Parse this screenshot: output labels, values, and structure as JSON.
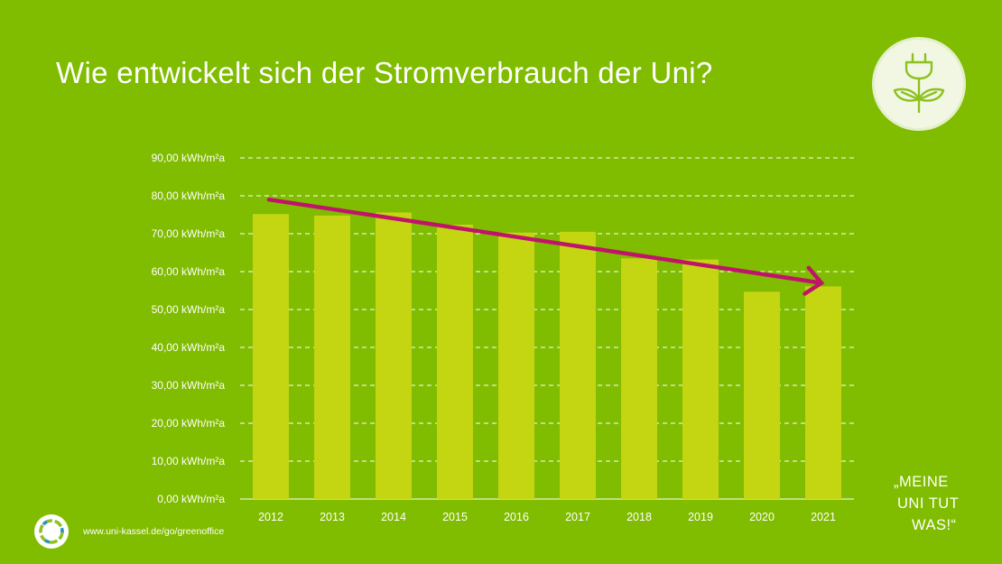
{
  "title": "Wie entwickelt sich der Stromverbrauch der Uni?",
  "colors": {
    "background": "#80bc00",
    "bar": "#c4d512",
    "trend_arrow": "#c0146a",
    "grid": "#ffffff"
  },
  "badge": {
    "icon": "plug-with-leaves-icon"
  },
  "chart_data": {
    "type": "bar",
    "categories": [
      "2012",
      "2013",
      "2014",
      "2015",
      "2016",
      "2017",
      "2018",
      "2019",
      "2020",
      "2021"
    ],
    "values": [
      75.2,
      74.8,
      75.6,
      72.4,
      70.3,
      70.5,
      63.5,
      63.2,
      54.7,
      56.1
    ],
    "y_tick_labels": [
      "0,00 kWh/m²a",
      "10,00 kWh/m²a",
      "20,00 kWh/m²a",
      "30,00 kWh/m²a",
      "40,00 kWh/m²a",
      "50,00 kWh/m²a",
      "60,00 kWh/m²a",
      "70,00 kWh/m²a",
      "80,00 kWh/m²a",
      "90,00 kWh/m²a"
    ],
    "ylim": [
      0,
      90
    ],
    "grid": "dashed horizontal",
    "trend": {
      "from": {
        "category": "2012",
        "value": 79
      },
      "to": {
        "category": "2021",
        "value": 57
      },
      "direction": "decreasing"
    }
  },
  "slogan": {
    "line1": "„MEINE",
    "line2": "UNI TUT",
    "line3": "WAS!“"
  },
  "footer": {
    "url": "www.uni-kassel.de/go/greenoffice",
    "logo_icon": "uni-logo-icon"
  }
}
